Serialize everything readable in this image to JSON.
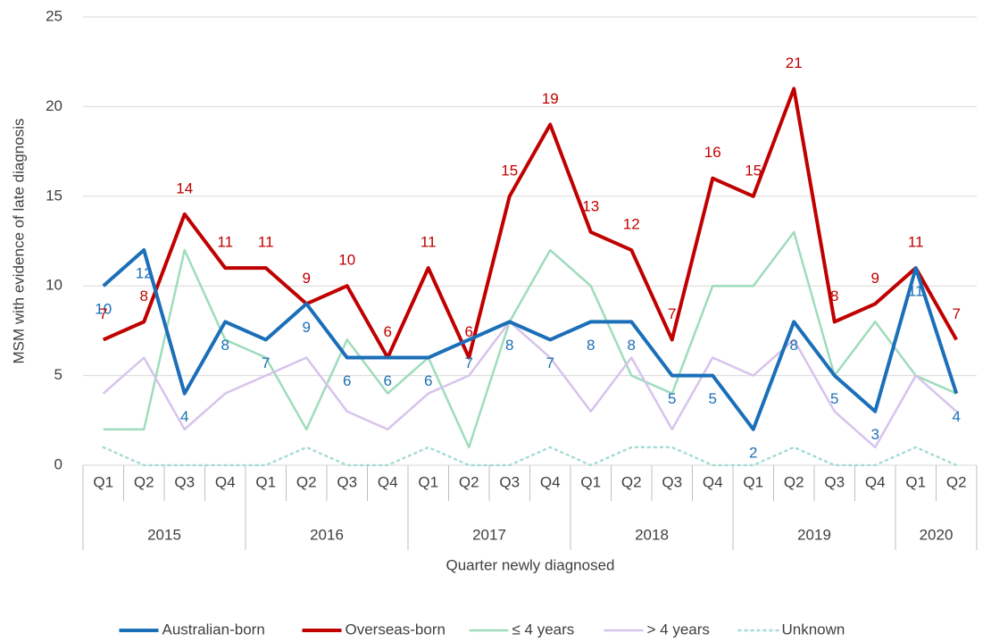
{
  "chart_data": {
    "type": "line",
    "y_label": "MSM with evidence of late diagnosis",
    "x_label": "Quarter newly diagnosed",
    "categories": [
      "Q1",
      "Q2",
      "Q3",
      "Q4",
      "Q1",
      "Q2",
      "Q3",
      "Q4",
      "Q1",
      "Q2",
      "Q3",
      "Q4",
      "Q1",
      "Q2",
      "Q3",
      "Q4",
      "Q1",
      "Q2",
      "Q3",
      "Q4",
      "Q1",
      "Q2"
    ],
    "category_groups": [
      {
        "label": "2015",
        "count": 4
      },
      {
        "label": "2016",
        "count": 4
      },
      {
        "label": "2017",
        "count": 4
      },
      {
        "label": "2018",
        "count": 4
      },
      {
        "label": "2019",
        "count": 4
      },
      {
        "label": "2020",
        "count": 2
      }
    ],
    "ylim": [
      0,
      25
    ],
    "yticks": [
      0,
      5,
      10,
      15,
      20,
      25
    ],
    "grid": true,
    "legend": "bottom",
    "series": [
      {
        "name": "Australian-born",
        "color": "#1b6fb8",
        "data_labels": true,
        "values": [
          10,
          12,
          4,
          8,
          7,
          9,
          6,
          6,
          6,
          7,
          8,
          7,
          8,
          8,
          5,
          5,
          2,
          8,
          5,
          3,
          11,
          4
        ]
      },
      {
        "name": "Overseas-born",
        "color": "#c00000",
        "data_labels": true,
        "values": [
          7,
          8,
          14,
          11,
          11,
          9,
          10,
          6,
          11,
          6,
          15,
          19,
          13,
          12,
          7,
          16,
          15,
          21,
          8,
          9,
          11,
          7
        ]
      },
      {
        "name": "≤ 4 years",
        "color": "#9fdcbc",
        "values": [
          2,
          2,
          12,
          7,
          6,
          2,
          7,
          4,
          6,
          1,
          8,
          12,
          10,
          5,
          4,
          10,
          10,
          13,
          5,
          8,
          5,
          4
        ]
      },
      {
        "name": "> 4 years",
        "color": "#d7c3ec",
        "values": [
          4,
          6,
          2,
          4,
          5,
          6,
          3,
          2,
          4,
          5,
          8,
          6,
          3,
          6,
          2,
          6,
          5,
          7,
          3,
          1,
          5,
          3
        ]
      },
      {
        "name": "Unknown",
        "color": "#a6dcd6",
        "dash": "dotted",
        "values": [
          1,
          0,
          0,
          0,
          0,
          1,
          0,
          0,
          1,
          0,
          0,
          1,
          0,
          1,
          1,
          0,
          0,
          1,
          0,
          0,
          1,
          0
        ]
      }
    ]
  }
}
